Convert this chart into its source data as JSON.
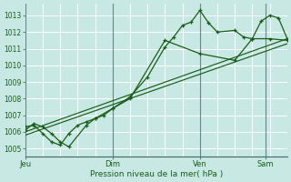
{
  "bg_color": "#c8e8e4",
  "grid_color": "#aacccc",
  "line_color": "#1a5c1a",
  "ylim": [
    1004.5,
    1013.7
  ],
  "yticks": [
    1005,
    1006,
    1007,
    1008,
    1009,
    1010,
    1011,
    1012,
    1013
  ],
  "xlabel": "Pression niveau de la mer( hPa )",
  "day_labels": [
    "Jeu",
    "Dim",
    "Ven",
    "Sam"
  ],
  "vline_x": [
    75,
    185,
    262
  ],
  "xlim_days": [
    0,
    24
  ],
  "line1_x": [
    0,
    0.5,
    1.0,
    1.5,
    2.0,
    2.5,
    3.5,
    4.0,
    5.0,
    6.0,
    7.0,
    8.0,
    8.5,
    9.0,
    9.5,
    10.0,
    10.5,
    11.0,
    12.0,
    12.5,
    13.0,
    13.5,
    14.0,
    14.5,
    15.0
  ],
  "line1_y": [
    1006.1,
    1006.5,
    1006.3,
    1005.9,
    1005.4,
    1005.1,
    1006.4,
    1006.8,
    1007.4,
    1008.1,
    1009.3,
    1011.1,
    1011.7,
    1012.4,
    1012.6,
    1013.3,
    1012.55,
    1012.0,
    1012.1,
    1011.7,
    1011.6,
    1012.65,
    1013.0,
    1012.85,
    1011.6
  ],
  "line2_x": [
    0,
    0.5,
    1.0,
    1.5,
    2.0,
    2.5,
    3.0,
    3.5,
    4.0,
    4.5,
    5.0,
    6.0,
    8.0,
    10.0,
    12.0,
    13.0,
    14.0,
    15.0
  ],
  "line2_y": [
    1006.3,
    1006.4,
    1005.9,
    1005.4,
    1005.2,
    1005.9,
    1006.4,
    1006.6,
    1006.8,
    1007.0,
    1007.4,
    1008.0,
    1011.5,
    1010.7,
    1010.3,
    1011.6,
    1011.6,
    1011.5
  ],
  "trend1_x": [
    0,
    15
  ],
  "trend1_y": [
    1005.8,
    1011.3
  ],
  "trend2_x": [
    0,
    15
  ],
  "trend2_y": [
    1006.0,
    1011.6
  ]
}
